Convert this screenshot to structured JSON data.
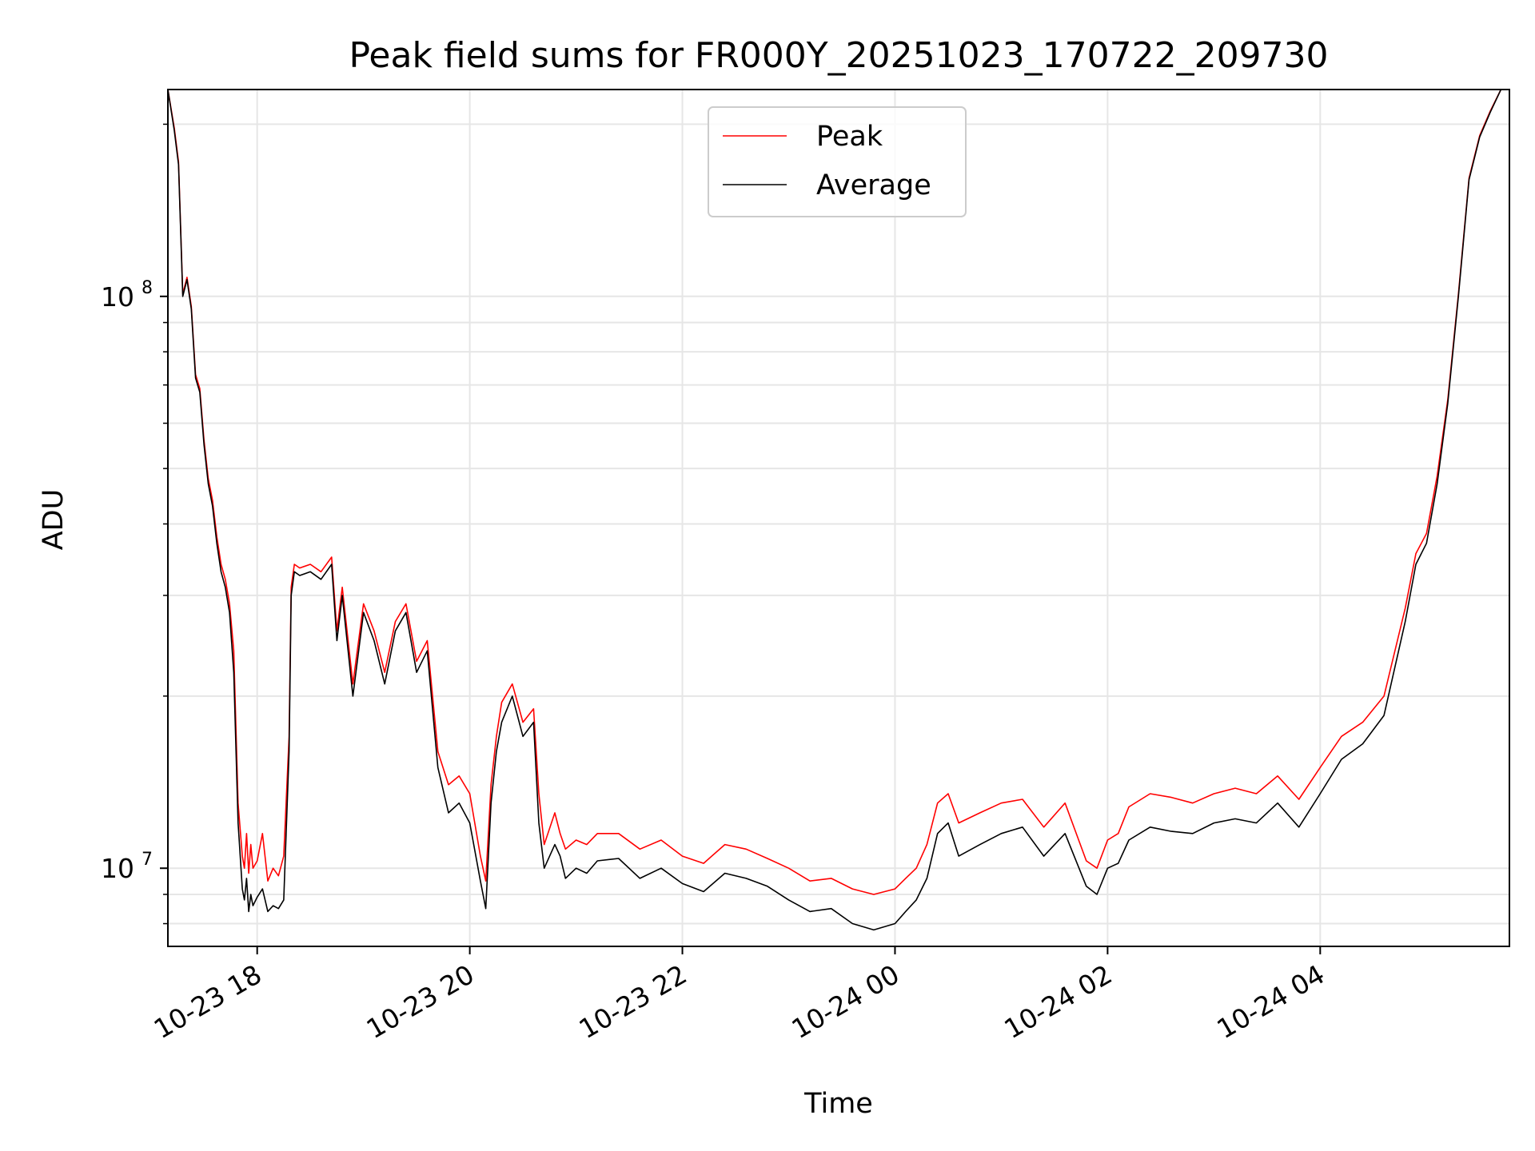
{
  "chart_data": {
    "type": "line",
    "title": "Peak field sums for FR000Y_20251023_170722_209730",
    "xlabel": "Time",
    "ylabel": "ADU",
    "yscale": "log",
    "ylim": [
      7300000,
      230000000
    ],
    "xlim_hours": [
      -0.84,
      11.78
    ],
    "x_origin": "2025-10-23 18:00",
    "grid": true,
    "legend": {
      "placement": "upper center",
      "entries": [
        {
          "label": "Peak",
          "color": "#ff0000"
        },
        {
          "label": "Average",
          "color": "#000000"
        }
      ]
    },
    "x_ticks": [
      {
        "label": "10-23 18",
        "hours": 0
      },
      {
        "label": "10-23 20",
        "hours": 2
      },
      {
        "label": "10-23 22",
        "hours": 4
      },
      {
        "label": "10-24 00",
        "hours": 6
      },
      {
        "label": "10-24 02",
        "hours": 8
      },
      {
        "label": "10-24 04",
        "hours": 10
      }
    ],
    "y_ticks": [
      {
        "base": "10",
        "exp": "7",
        "value": 10000000
      },
      {
        "base": "10",
        "exp": "8",
        "value": 100000000
      }
    ],
    "series": [
      {
        "name": "Average",
        "color": "#000000",
        "x_hours": [
          -0.84,
          -0.78,
          -0.74,
          -0.7,
          -0.66,
          -0.62,
          -0.58,
          -0.54,
          -0.5,
          -0.46,
          -0.42,
          -0.38,
          -0.34,
          -0.3,
          -0.26,
          -0.22,
          -0.18,
          -0.14,
          -0.12,
          -0.1,
          -0.08,
          -0.06,
          -0.04,
          0.0,
          0.05,
          0.1,
          0.15,
          0.2,
          0.25,
          0.3,
          0.32,
          0.35,
          0.4,
          0.5,
          0.6,
          0.7,
          0.75,
          0.8,
          0.9,
          1.0,
          1.1,
          1.2,
          1.3,
          1.4,
          1.5,
          1.6,
          1.7,
          1.8,
          1.9,
          2.0,
          2.1,
          2.15,
          2.2,
          2.25,
          2.3,
          2.4,
          2.5,
          2.6,
          2.65,
          2.7,
          2.8,
          2.85,
          2.9,
          3.0,
          3.1,
          3.2,
          3.4,
          3.6,
          3.8,
          4.0,
          4.2,
          4.4,
          4.6,
          4.8,
          5.0,
          5.2,
          5.4,
          5.6,
          5.8,
          6.0,
          6.1,
          6.2,
          6.3,
          6.4,
          6.5,
          6.6,
          6.8,
          7.0,
          7.2,
          7.4,
          7.6,
          7.8,
          7.9,
          8.0,
          8.1,
          8.2,
          8.4,
          8.6,
          8.8,
          9.0,
          9.2,
          9.4,
          9.6,
          9.8,
          10.0,
          10.2,
          10.4,
          10.6,
          10.8,
          10.9,
          11.0,
          11.1,
          11.2,
          11.3,
          11.4,
          11.5,
          11.6,
          11.7,
          11.78
        ],
        "values": [
          230000000,
          195000000,
          170000000,
          100000000,
          107000000,
          95000000,
          72000000,
          68000000,
          55000000,
          47000000,
          43000000,
          37000000,
          33000000,
          31000000,
          28000000,
          22000000,
          12000000,
          9200000,
          8800000,
          9600000,
          8400000,
          9000000,
          8600000,
          8900000,
          9200000,
          8400000,
          8600000,
          8500000,
          8800000,
          16000000,
          30000000,
          33000000,
          32500000,
          33000000,
          32000000,
          34000000,
          25000000,
          30000000,
          20000000,
          28000000,
          25000000,
          21000000,
          26000000,
          28000000,
          22000000,
          24000000,
          15000000,
          12500000,
          13000000,
          12000000,
          9500000,
          8500000,
          13000000,
          16000000,
          18000000,
          20000000,
          17000000,
          18000000,
          12000000,
          10000000,
          11000000,
          10500000,
          9600000,
          10000000,
          9800000,
          10300000,
          10400000,
          9600000,
          10000000,
          9400000,
          9100000,
          9800000,
          9600000,
          9300000,
          8800000,
          8400000,
          8500000,
          8000000,
          7800000,
          8000000,
          8400000,
          8800000,
          9600000,
          11500000,
          12000000,
          10500000,
          11000000,
          11500000,
          11800000,
          10500000,
          11500000,
          9300000,
          9000000,
          10000000,
          10200000,
          11200000,
          11800000,
          11600000,
          11500000,
          12000000,
          12200000,
          12000000,
          13000000,
          11800000,
          13500000,
          15500000,
          16500000,
          18500000,
          27000000,
          34000000,
          37000000,
          47000000,
          65000000,
          100000000,
          160000000,
          190000000,
          210000000,
          230000000,
          230000000
        ]
      },
      {
        "name": "Peak",
        "color": "#ff0000",
        "x_hours": [
          -0.84,
          -0.78,
          -0.74,
          -0.7,
          -0.66,
          -0.62,
          -0.58,
          -0.54,
          -0.5,
          -0.46,
          -0.42,
          -0.38,
          -0.34,
          -0.3,
          -0.26,
          -0.22,
          -0.18,
          -0.14,
          -0.12,
          -0.1,
          -0.08,
          -0.06,
          -0.04,
          0.0,
          0.05,
          0.1,
          0.15,
          0.2,
          0.25,
          0.3,
          0.32,
          0.35,
          0.4,
          0.5,
          0.6,
          0.7,
          0.75,
          0.8,
          0.9,
          1.0,
          1.1,
          1.2,
          1.3,
          1.4,
          1.5,
          1.6,
          1.7,
          1.8,
          1.9,
          2.0,
          2.1,
          2.15,
          2.2,
          2.25,
          2.3,
          2.4,
          2.5,
          2.6,
          2.65,
          2.7,
          2.8,
          2.85,
          2.9,
          3.0,
          3.1,
          3.2,
          3.4,
          3.6,
          3.8,
          4.0,
          4.2,
          4.4,
          4.6,
          4.8,
          5.0,
          5.2,
          5.4,
          5.6,
          5.8,
          6.0,
          6.1,
          6.2,
          6.3,
          6.4,
          6.5,
          6.6,
          6.8,
          7.0,
          7.2,
          7.4,
          7.6,
          7.8,
          7.9,
          8.0,
          8.1,
          8.2,
          8.4,
          8.6,
          8.8,
          9.0,
          9.2,
          9.4,
          9.6,
          9.8,
          10.0,
          10.2,
          10.4,
          10.6,
          10.8,
          10.9,
          11.0,
          11.1,
          11.2,
          11.3,
          11.4,
          11.5,
          11.6,
          11.7,
          11.78
        ],
        "values": [
          230000000,
          197000000,
          172000000,
          101000000,
          108000000,
          96000000,
          73000000,
          69000000,
          56000000,
          48000000,
          44000000,
          38000000,
          34000000,
          32000000,
          29000000,
          24000000,
          13000000,
          10500000,
          10000000,
          11500000,
          9800000,
          11000000,
          10000000,
          10300000,
          11500000,
          9500000,
          10000000,
          9700000,
          10500000,
          17000000,
          31000000,
          34000000,
          33500000,
          34000000,
          33000000,
          35000000,
          26000000,
          31000000,
          21000000,
          29000000,
          26000000,
          22000000,
          27000000,
          29000000,
          23000000,
          25000000,
          16000000,
          14000000,
          14500000,
          13500000,
          10500000,
          9500000,
          14000000,
          17000000,
          19500000,
          21000000,
          18000000,
          19000000,
          13500000,
          11000000,
          12500000,
          11500000,
          10800000,
          11200000,
          11000000,
          11500000,
          11500000,
          10800000,
          11200000,
          10500000,
          10200000,
          11000000,
          10800000,
          10400000,
          10000000,
          9500000,
          9600000,
          9200000,
          9000000,
          9200000,
          9600000,
          10000000,
          11000000,
          13000000,
          13500000,
          12000000,
          12500000,
          13000000,
          13200000,
          11800000,
          13000000,
          10300000,
          10000000,
          11200000,
          11500000,
          12800000,
          13500000,
          13300000,
          13000000,
          13500000,
          13800000,
          13500000,
          14500000,
          13200000,
          15000000,
          17000000,
          18000000,
          20000000,
          28500000,
          35500000,
          38500000,
          48500000,
          66000000,
          101000000,
          161000000,
          191000000,
          211000000,
          230000000,
          230000000
        ]
      }
    ]
  }
}
